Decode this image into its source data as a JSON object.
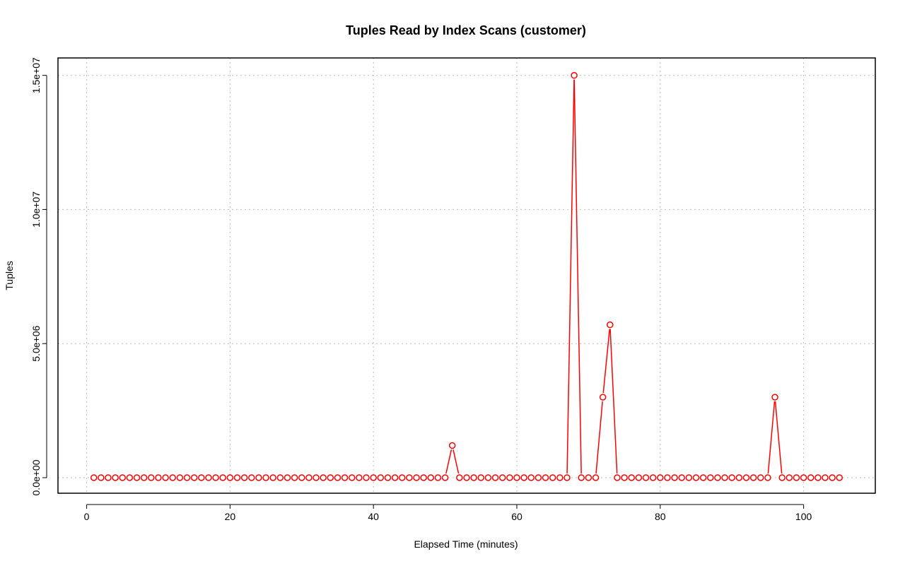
{
  "chart_data": {
    "type": "line",
    "title": "Tuples Read by Index Scans (customer)",
    "xlabel": "Elapsed Time (minutes)",
    "ylabel": "Tuples",
    "xlim": [
      -4,
      110
    ],
    "ylim": [
      -580000,
      15650000
    ],
    "x_ticks": [
      0,
      20,
      40,
      60,
      80,
      100
    ],
    "x_tick_labels": [
      "0",
      "20",
      "40",
      "60",
      "80",
      "100"
    ],
    "y_ticks": [
      0,
      5000000,
      10000000,
      15000000
    ],
    "y_tick_labels": [
      "0.0e+00",
      "5.0e+06",
      "1.0e+07",
      "1.5e+07"
    ],
    "grid": true,
    "series": [
      {
        "color": "#ff0000",
        "marker": "open-circle",
        "x": [
          1,
          2,
          3,
          4,
          5,
          6,
          7,
          8,
          9,
          10,
          11,
          12,
          13,
          14,
          15,
          16,
          17,
          18,
          19,
          20,
          21,
          22,
          23,
          24,
          25,
          26,
          27,
          28,
          29,
          30,
          31,
          32,
          33,
          34,
          35,
          36,
          37,
          38,
          39,
          40,
          41,
          42,
          43,
          44,
          45,
          46,
          47,
          48,
          49,
          50,
          51,
          52,
          53,
          54,
          55,
          56,
          57,
          58,
          59,
          60,
          61,
          62,
          63,
          64,
          65,
          66,
          67,
          68,
          69,
          70,
          71,
          72,
          73,
          74,
          75,
          76,
          77,
          78,
          79,
          80,
          81,
          82,
          83,
          84,
          85,
          86,
          87,
          88,
          89,
          90,
          91,
          92,
          93,
          94,
          95,
          96,
          97,
          98,
          99,
          100,
          101,
          102,
          103,
          104,
          105
        ],
        "values": [
          0,
          0,
          0,
          0,
          0,
          0,
          0,
          0,
          0,
          0,
          0,
          0,
          0,
          0,
          0,
          0,
          0,
          0,
          0,
          0,
          0,
          0,
          0,
          0,
          0,
          0,
          0,
          0,
          0,
          0,
          0,
          0,
          0,
          0,
          0,
          0,
          0,
          0,
          0,
          0,
          0,
          0,
          0,
          0,
          0,
          0,
          0,
          0,
          0,
          0,
          1200000,
          0,
          0,
          0,
          0,
          0,
          0,
          0,
          0,
          0,
          0,
          0,
          0,
          0,
          0,
          0,
          0,
          15000000,
          0,
          0,
          0,
          3000000,
          5700000,
          0,
          0,
          0,
          0,
          0,
          0,
          0,
          0,
          0,
          0,
          0,
          0,
          0,
          0,
          0,
          0,
          0,
          0,
          0,
          0,
          0,
          0,
          3000000,
          0,
          0,
          0,
          0,
          0,
          0,
          0,
          0,
          0
        ]
      }
    ]
  }
}
